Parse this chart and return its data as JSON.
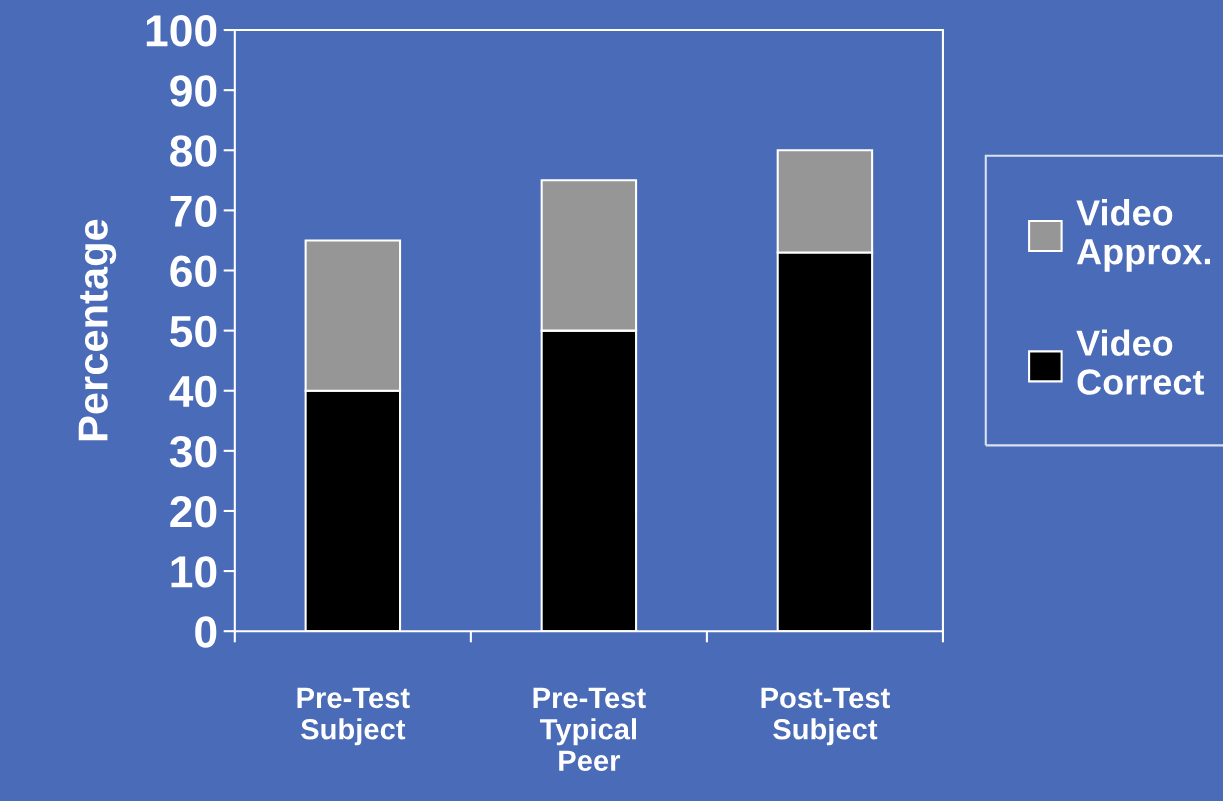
{
  "chart_data": {
    "type": "bar",
    "stacked": true,
    "ylabel": "Percentage",
    "categories": [
      "Pre-Test\nSubject",
      "Pre-Test\nTypical\nPeer",
      "Post-Test\nSubject"
    ],
    "series": [
      {
        "name": "Video\nCorrect",
        "color": "#000000",
        "values": [
          40,
          50,
          63
        ]
      },
      {
        "name": "Video\nApprox.",
        "color": "#969696",
        "values": [
          25,
          25,
          17
        ]
      }
    ],
    "ylim": [
      0,
      100
    ],
    "yticks": [
      0,
      10,
      20,
      30,
      40,
      50,
      60,
      70,
      80,
      90,
      100
    ],
    "grid": false,
    "legend": "right"
  }
}
